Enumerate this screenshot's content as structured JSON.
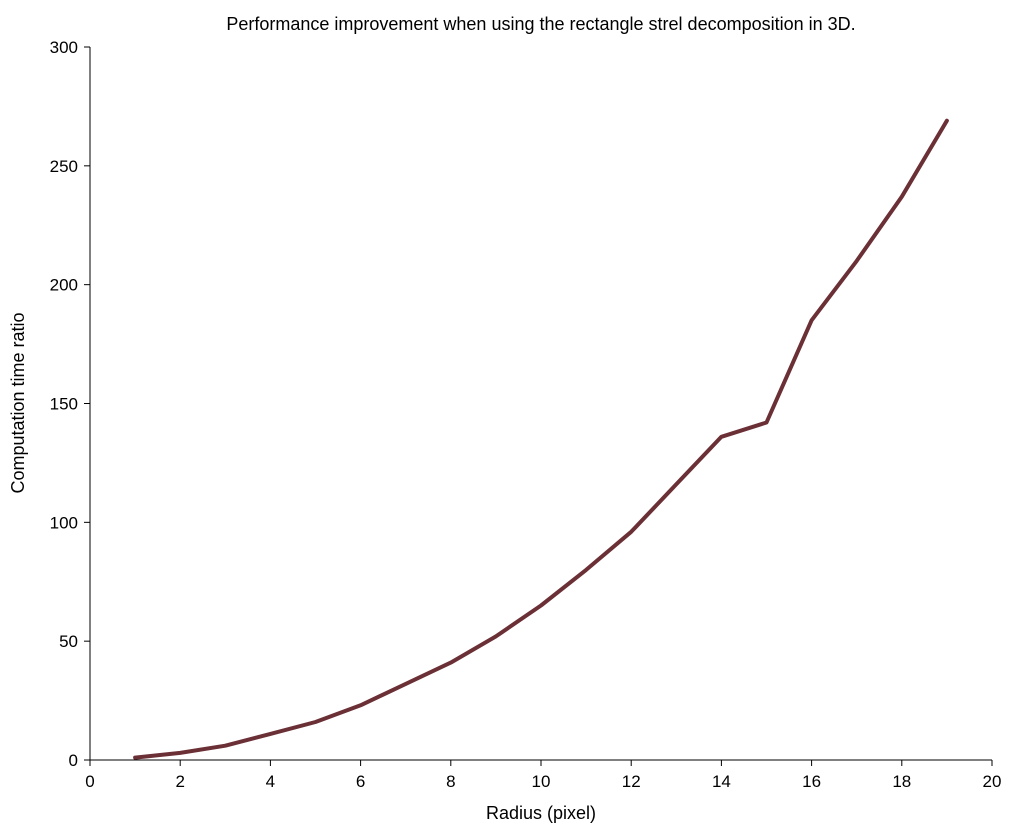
{
  "chart_data": {
    "type": "line",
    "title": "Performance improvement when using the rectangle strel decomposition in 3D.",
    "xlabel": "Radius (pixel)",
    "ylabel": "Computation time ratio",
    "xlim": [
      0,
      20
    ],
    "ylim": [
      0,
      300
    ],
    "xticks": [
      0,
      2,
      4,
      6,
      8,
      10,
      12,
      14,
      16,
      18,
      20
    ],
    "yticks": [
      0,
      50,
      100,
      150,
      200,
      250,
      300
    ],
    "grid": false,
    "line_color": "#6b3036",
    "series": [
      {
        "x": [
          1,
          2,
          3,
          4,
          5,
          6,
          7,
          8,
          9,
          10,
          11,
          12,
          13,
          14,
          15,
          16,
          17,
          18,
          19
        ],
        "values": [
          1,
          3,
          6,
          11,
          16,
          23,
          32,
          41,
          52,
          65,
          80,
          96,
          116,
          136,
          142,
          185,
          210,
          237,
          269
        ]
      }
    ]
  }
}
